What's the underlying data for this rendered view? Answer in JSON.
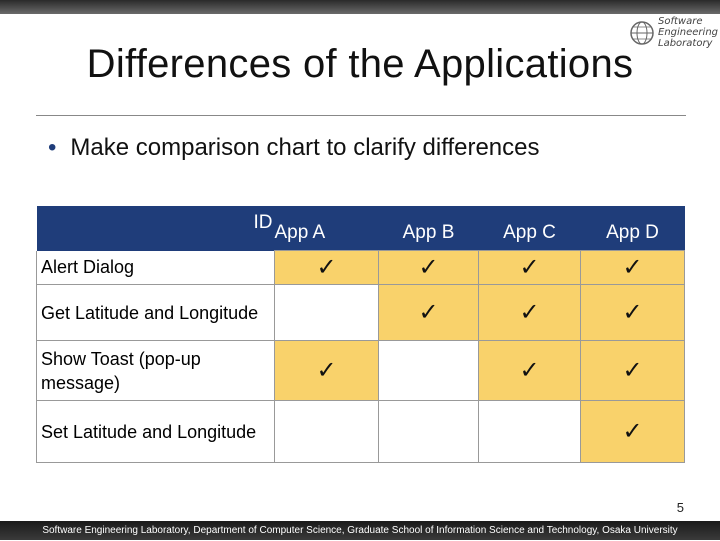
{
  "title": "Differences of the Applications",
  "logo": {
    "lines": [
      "Software",
      "Engineering",
      "Laboratory"
    ]
  },
  "bullet": "Make comparison chart to clarify differences",
  "table": {
    "id_header": "ID",
    "apps": [
      "App A",
      "App B",
      "App C",
      "App D"
    ],
    "check": "✓",
    "rows": [
      {
        "label": "Alert Dialog",
        "checks": [
          true,
          true,
          true,
          true
        ]
      },
      {
        "label": "Get Latitude and Longitude",
        "checks": [
          false,
          true,
          true,
          true
        ]
      },
      {
        "label": "Show Toast (pop-up message)",
        "checks": [
          true,
          false,
          true,
          true
        ]
      },
      {
        "label": "Set Latitude and Longitude",
        "checks": [
          false,
          false,
          false,
          true
        ]
      }
    ]
  },
  "page_number": "5",
  "footer": "Software Engineering Laboratory, Department of Computer Science, Graduate School of Information Science and Technology, Osaka University",
  "colors": {
    "header_bg": "#1f3d7a",
    "cell_highlight": "#f9d26b"
  }
}
